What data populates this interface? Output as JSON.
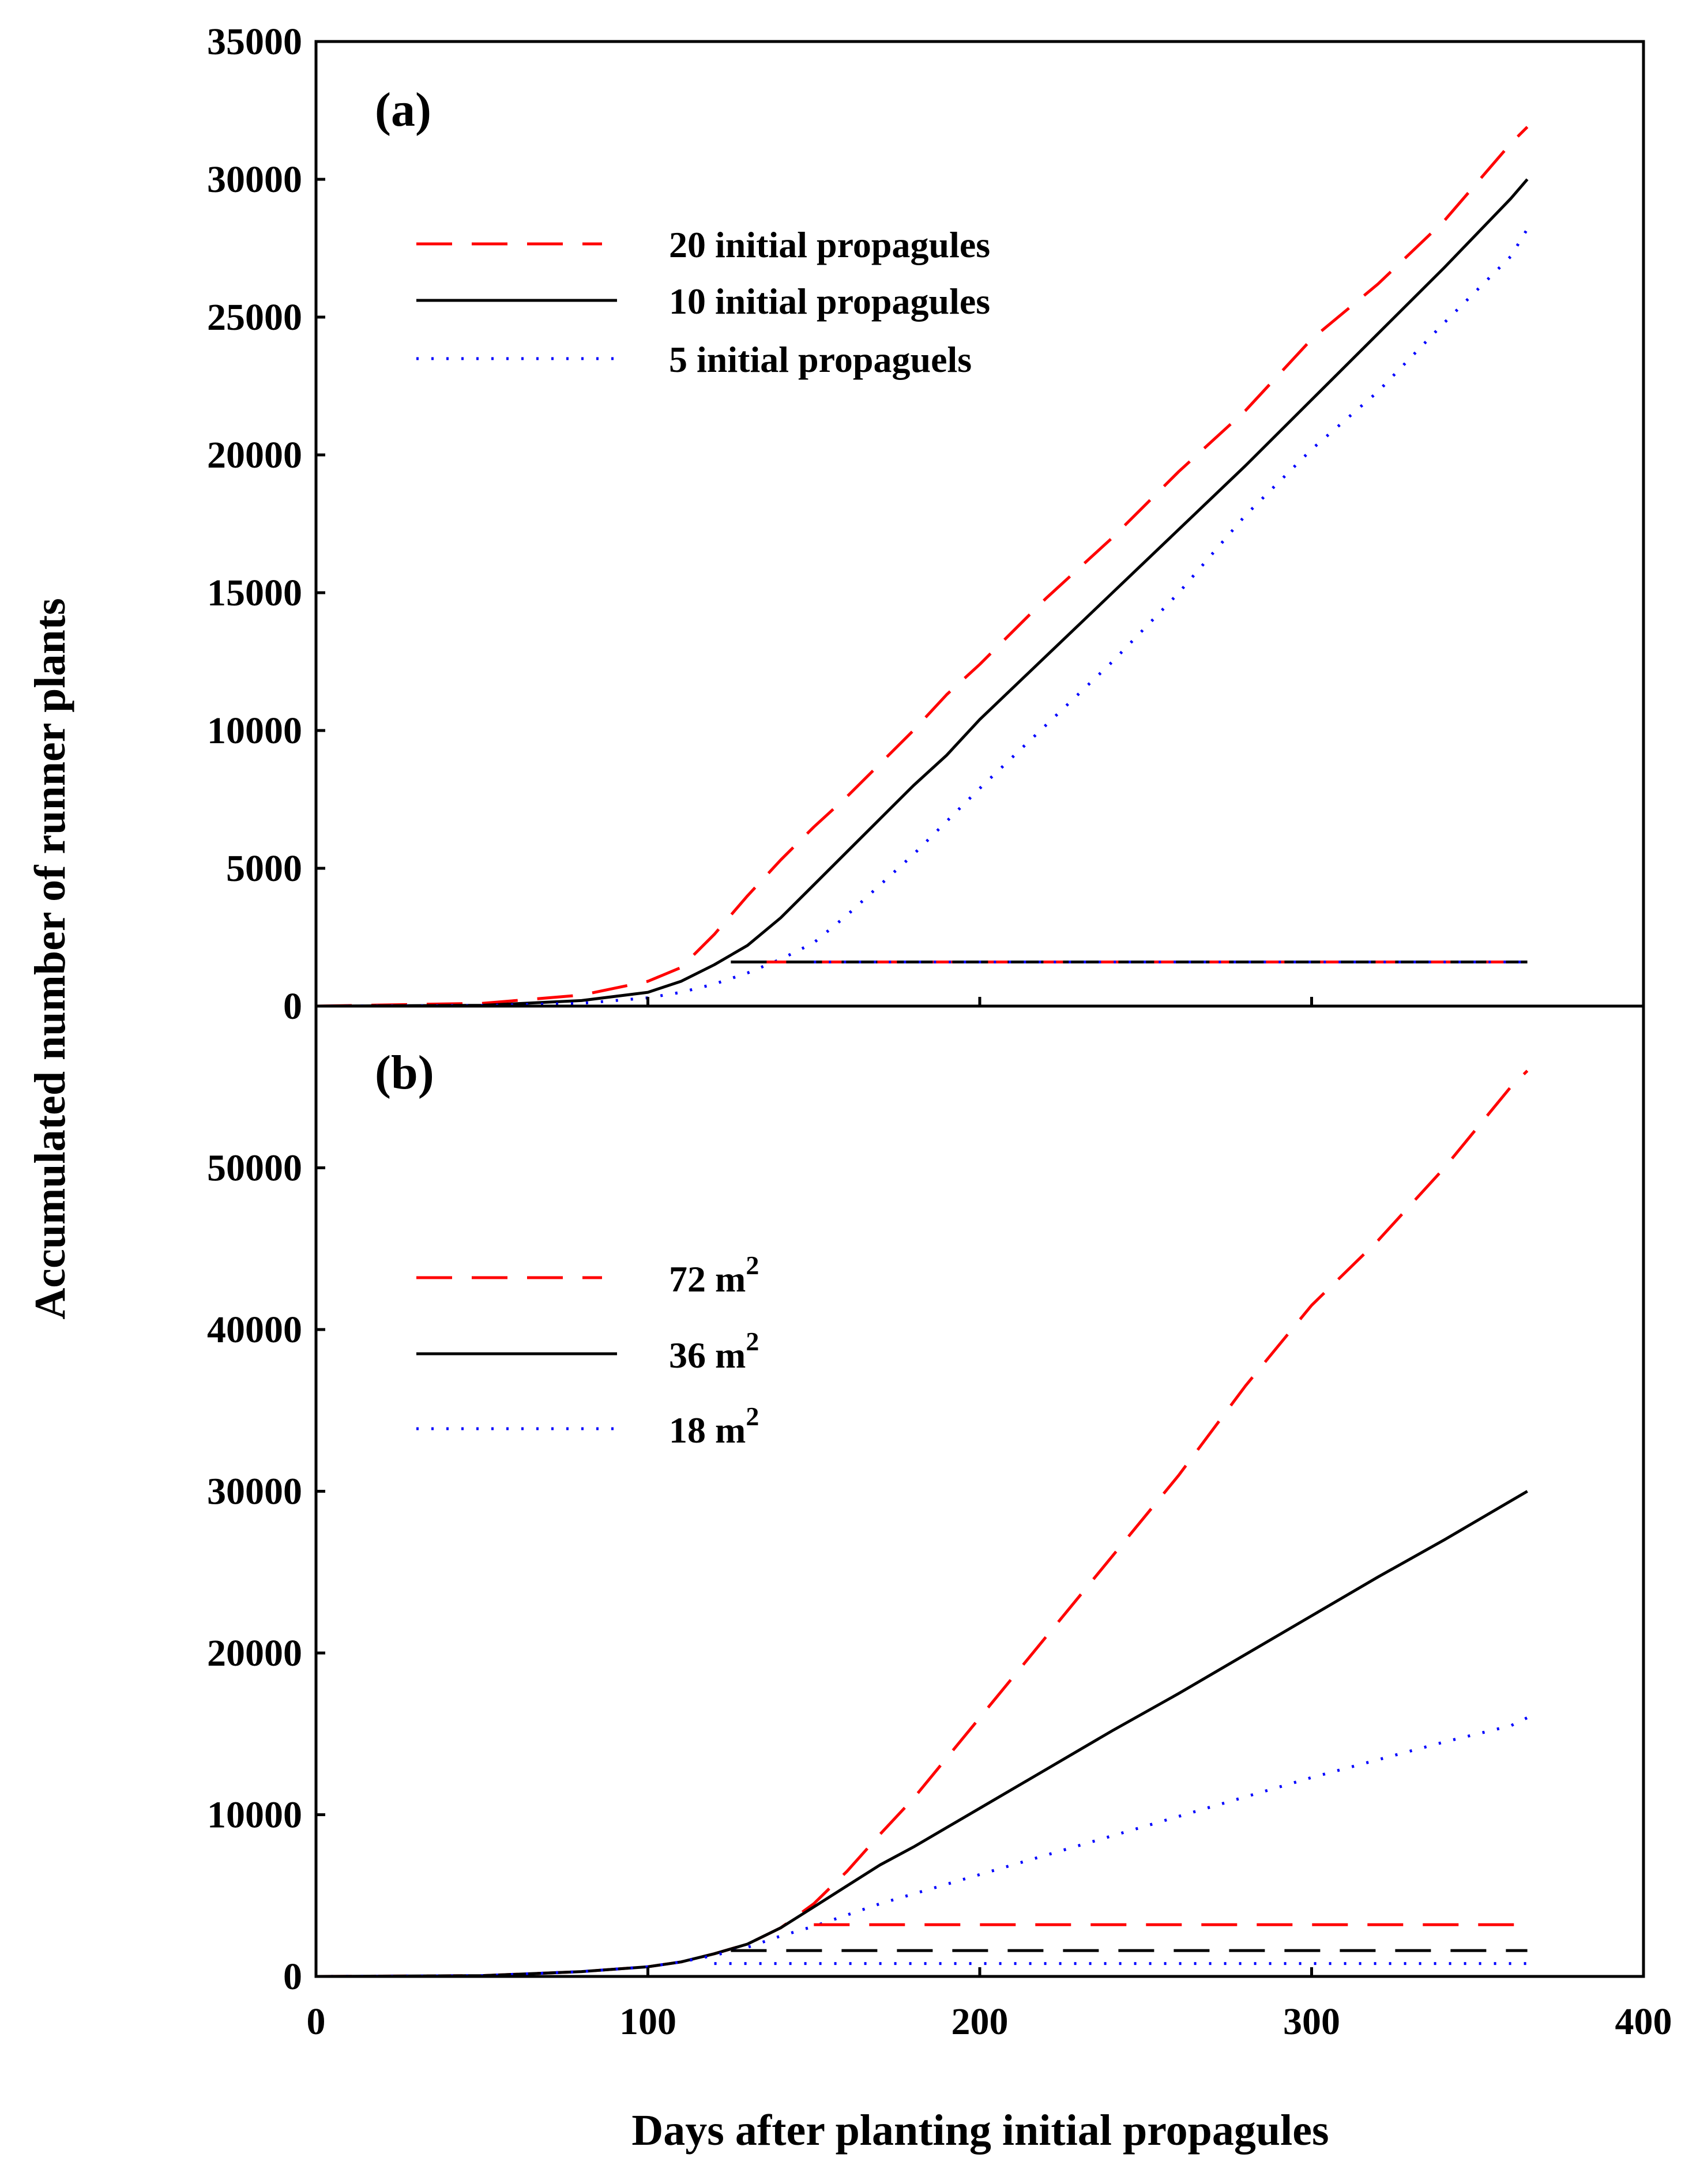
{
  "figure": {
    "x_axis_title": "Days after planting initial propagules",
    "y_axis_title": "Accumulated number of runner plants"
  },
  "colors": {
    "series_red": "#ff0000",
    "series_black": "#000000",
    "series_blue": "#0000ff"
  },
  "chart_data": [
    {
      "type": "line",
      "panel_label": "(a)",
      "xlabel": "Days after planting initial propagules",
      "ylabel": "Accumulated number of runner plants",
      "xlim": [
        0,
        400
      ],
      "ylim": [
        0,
        35000
      ],
      "x_ticks": [
        "0",
        "100",
        "200",
        "300",
        "400"
      ],
      "y_ticks": [
        "0",
        "5000",
        "10000",
        "15000",
        "20000",
        "25000",
        "30000",
        "35000"
      ],
      "x_tick_values": [
        0,
        100,
        200,
        300,
        400
      ],
      "y_tick_values": [
        0,
        5000,
        10000,
        15000,
        20000,
        25000,
        30000,
        35000
      ],
      "series": [
        {
          "name": "20 initial propagules",
          "style": "dashed",
          "color": "#ff0000",
          "x": [
            0,
            50,
            80,
            100,
            110,
            120,
            130,
            140,
            150,
            160,
            170,
            180,
            190,
            200,
            220,
            240,
            260,
            280,
            300,
            320,
            340,
            360,
            365
          ],
          "y": [
            0,
            100,
            400,
            900,
            1400,
            2600,
            4000,
            5300,
            6500,
            7600,
            8800,
            10000,
            11300,
            12400,
            14800,
            17000,
            19400,
            21600,
            24200,
            26200,
            28500,
            31300,
            31900
          ]
        },
        {
          "name": "10 initial propagules",
          "style": "solid",
          "color": "#000000",
          "x": [
            0,
            50,
            80,
            100,
            110,
            120,
            130,
            140,
            150,
            160,
            170,
            180,
            190,
            200,
            220,
            240,
            260,
            280,
            300,
            320,
            340,
            360,
            365
          ],
          "y": [
            0,
            30,
            200,
            500,
            900,
            1500,
            2200,
            3200,
            4400,
            5600,
            6800,
            8000,
            9100,
            10400,
            12700,
            15000,
            17300,
            19600,
            22000,
            24400,
            26800,
            29300,
            30000
          ]
        },
        {
          "name": "5 initial propagules",
          "style": "dotted",
          "color": "#0000ff",
          "x": [
            0,
            50,
            80,
            100,
            110,
            120,
            130,
            140,
            150,
            160,
            170,
            180,
            200,
            220,
            240,
            260,
            280,
            300,
            320,
            340,
            360,
            365
          ],
          "y": [
            0,
            20,
            100,
            300,
            500,
            800,
            1200,
            1700,
            2300,
            3300,
            4400,
            5500,
            7900,
            10200,
            12500,
            15000,
            17800,
            20200,
            22300,
            24800,
            27200,
            28200
          ]
        },
        {
          "name": "20 initial propagules (plateau)",
          "style": "dashed",
          "color": "#ff0000",
          "x": [
            135,
            365
          ],
          "y": [
            1600,
            1600
          ]
        },
        {
          "name": "10 initial propagules (plateau)",
          "style": "dashed",
          "color": "#000000",
          "x": [
            125,
            365
          ],
          "y": [
            1600,
            1600
          ]
        },
        {
          "name": "5 initial propagules (plateau)",
          "style": "dotted",
          "color": "#0000ff",
          "x": [
            150,
            365
          ],
          "y": [
            1600,
            1600
          ]
        }
      ],
      "legend": {
        "placement": "top-left",
        "entries": [
          {
            "label": "20 initial propagules",
            "color": "#ff0000",
            "style": "dashed"
          },
          {
            "label": "10 initial propagules",
            "color": "#000000",
            "style": "solid"
          },
          {
            "label": "5 initial propaguels",
            "color": "#0000ff",
            "style": "dotted"
          }
        ]
      }
    },
    {
      "type": "line",
      "panel_label": "(b)",
      "xlabel": "Days after planting initial propagules",
      "ylabel": "Accumulated number of runner plants",
      "xlim": [
        0,
        400
      ],
      "ylim": [
        0,
        60000
      ],
      "x_ticks": [
        "0",
        "100",
        "200",
        "300",
        "400"
      ],
      "y_ticks": [
        "0",
        "10000",
        "20000",
        "30000",
        "40000",
        "50000"
      ],
      "x_tick_values": [
        0,
        100,
        200,
        300,
        400
      ],
      "y_tick_values": [
        0,
        10000,
        20000,
        30000,
        40000,
        50000
      ],
      "series": [
        {
          "name": "72 m2",
          "style": "dashed",
          "color": "#ff0000",
          "x": [
            0,
            50,
            80,
            100,
            110,
            120,
            130,
            140,
            150,
            160,
            170,
            180,
            190,
            200,
            220,
            240,
            260,
            280,
            300,
            320,
            340,
            360,
            365
          ],
          "y": [
            0,
            50,
            300,
            600,
            900,
            1400,
            2000,
            3000,
            4500,
            6500,
            8800,
            11000,
            13500,
            16000,
            21000,
            26000,
            31000,
            36500,
            41500,
            45500,
            50000,
            55000,
            56000
          ]
        },
        {
          "name": "36 m2",
          "style": "solid",
          "color": "#000000",
          "x": [
            0,
            50,
            80,
            100,
            110,
            120,
            130,
            140,
            150,
            160,
            170,
            180,
            190,
            200,
            220,
            240,
            260,
            280,
            300,
            320,
            340,
            360,
            365
          ],
          "y": [
            0,
            50,
            300,
            600,
            900,
            1400,
            2000,
            3000,
            4300,
            5600,
            6900,
            8000,
            9200,
            10400,
            12800,
            15200,
            17500,
            19900,
            22300,
            24700,
            27000,
            29400,
            30000
          ]
        },
        {
          "name": "18 m2",
          "style": "dotted",
          "color": "#0000ff",
          "x": [
            0,
            50,
            80,
            100,
            110,
            120,
            130,
            140,
            150,
            160,
            170,
            180,
            190,
            200,
            220,
            240,
            260,
            280,
            300,
            320,
            340,
            360,
            365
          ],
          "y": [
            0,
            50,
            300,
            600,
            900,
            1300,
            1800,
            2500,
            3100,
            3800,
            4500,
            5100,
            5700,
            6300,
            7500,
            8700,
            9900,
            11100,
            12300,
            13400,
            14500,
            15500,
            16000
          ]
        },
        {
          "name": "72 m2 (plateau)",
          "style": "dashed",
          "color": "#ff0000",
          "x": [
            150,
            365
          ],
          "y": [
            3200,
            3200
          ]
        },
        {
          "name": "36 m2 (plateau)",
          "style": "dashed",
          "color": "#000000",
          "x": [
            125,
            365
          ],
          "y": [
            1600,
            1600
          ]
        },
        {
          "name": "18 m2 (plateau)",
          "style": "dotted",
          "color": "#0000ff",
          "x": [
            120,
            365
          ],
          "y": [
            800,
            800
          ]
        }
      ],
      "legend": {
        "placement": "top-left",
        "entries": [
          {
            "label": "72 m",
            "superscript": "2",
            "color": "#ff0000",
            "style": "dashed"
          },
          {
            "label": "36 m",
            "superscript": "2",
            "color": "#000000",
            "style": "solid"
          },
          {
            "label": "18 m",
            "superscript": "2",
            "color": "#0000ff",
            "style": "dotted"
          }
        ]
      }
    }
  ]
}
